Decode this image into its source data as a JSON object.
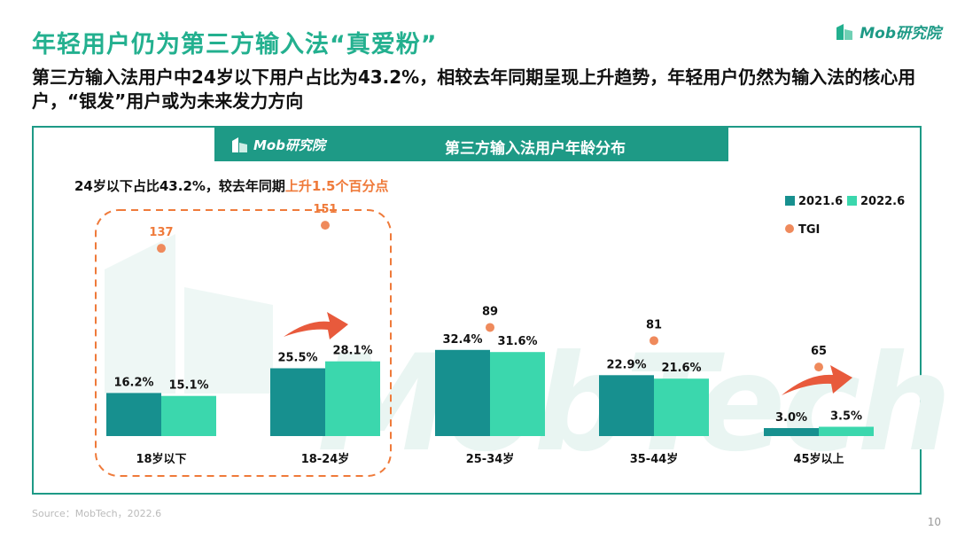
{
  "page": {
    "title": "年轻用户仍为第三方输入法“真爱粉”",
    "subtitle": "第三方输入法用户中24岁以下用户占比为43.2%，相较去年同期呈现上升趋势，年轻用户仍然为输入法的核心用户，“银发”用户或为未来发力方向",
    "brand": "Mob研究院",
    "source": "Source：MobTech，2022.6",
    "page_number": "10",
    "watermark_text": "MobTech"
  },
  "colors": {
    "title_green": "#23b08f",
    "panel_teal": "#1e9a86",
    "series_2021": "#17908f",
    "series_2022": "#3bd7ad",
    "tgi_dot": "#ef8a5c",
    "highlight_orange": "#ef7a3a",
    "arrow_red": "#e85a3c"
  },
  "chart_data": {
    "type": "bar",
    "title": "第三方输入法用户年龄分布",
    "annotation": {
      "prefix": "24岁以下占比43.2%，较去年同期",
      "highlight": "上升1.5个百分点"
    },
    "categories": [
      "18岁以下",
      "18-24岁",
      "25-34岁",
      "35-44岁",
      "45岁以上"
    ],
    "series": [
      {
        "name": "2021.6",
        "values": [
          16.2,
          25.5,
          32.4,
          22.9,
          3.0
        ],
        "labels": [
          "16.2%",
          "25.5%",
          "32.4%",
          "22.9%",
          "3.0%"
        ]
      },
      {
        "name": "2022.6",
        "values": [
          15.1,
          28.1,
          31.6,
          21.6,
          3.5
        ],
        "labels": [
          "15.1%",
          "28.1%",
          "31.6%",
          "21.6%",
          "3.5%"
        ]
      }
    ],
    "tgi": {
      "name": "TGI",
      "values": [
        137,
        151,
        89,
        81,
        65
      ]
    },
    "ylim": [
      0,
      40
    ],
    "grid": false,
    "legend_position": "top-right"
  }
}
